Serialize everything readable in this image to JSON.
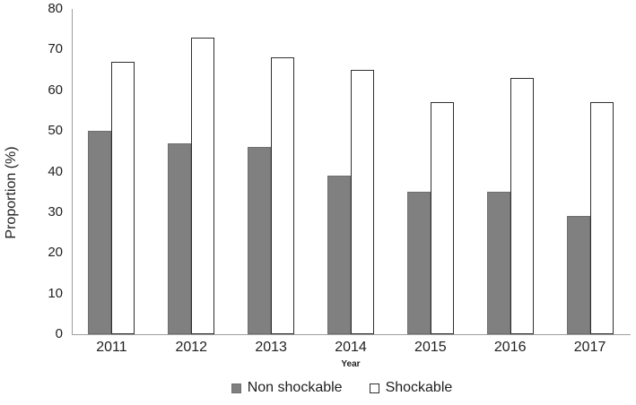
{
  "figure": {
    "background": "#ffffff",
    "text_color": "#1f1f1f"
  },
  "chart_data": {
    "type": "bar",
    "title": "",
    "ylabel": "Proportion (%)",
    "xlabel": "Year",
    "ylim": [
      0,
      80
    ],
    "yticks": [
      0,
      10,
      20,
      30,
      40,
      50,
      60,
      70,
      80
    ],
    "categories": [
      "2011",
      "2012",
      "2013",
      "2014",
      "2015",
      "2016",
      "2017"
    ],
    "series": [
      {
        "name": "Non shockable",
        "values": [
          50,
          47,
          46,
          39,
          35,
          35,
          29
        ],
        "fill": "#808080",
        "border": "#6f6f6f",
        "swatch": "filled-gray-square"
      },
      {
        "name": "Shockable",
        "values": [
          67,
          73,
          68,
          65,
          57,
          63,
          57
        ],
        "fill": "#ffffff",
        "border": "#2f2f2f",
        "swatch": "outlined-white-square"
      }
    ],
    "legend_position": "bottom-center",
    "grid": false,
    "axis_color": "#9e9e9e"
  }
}
